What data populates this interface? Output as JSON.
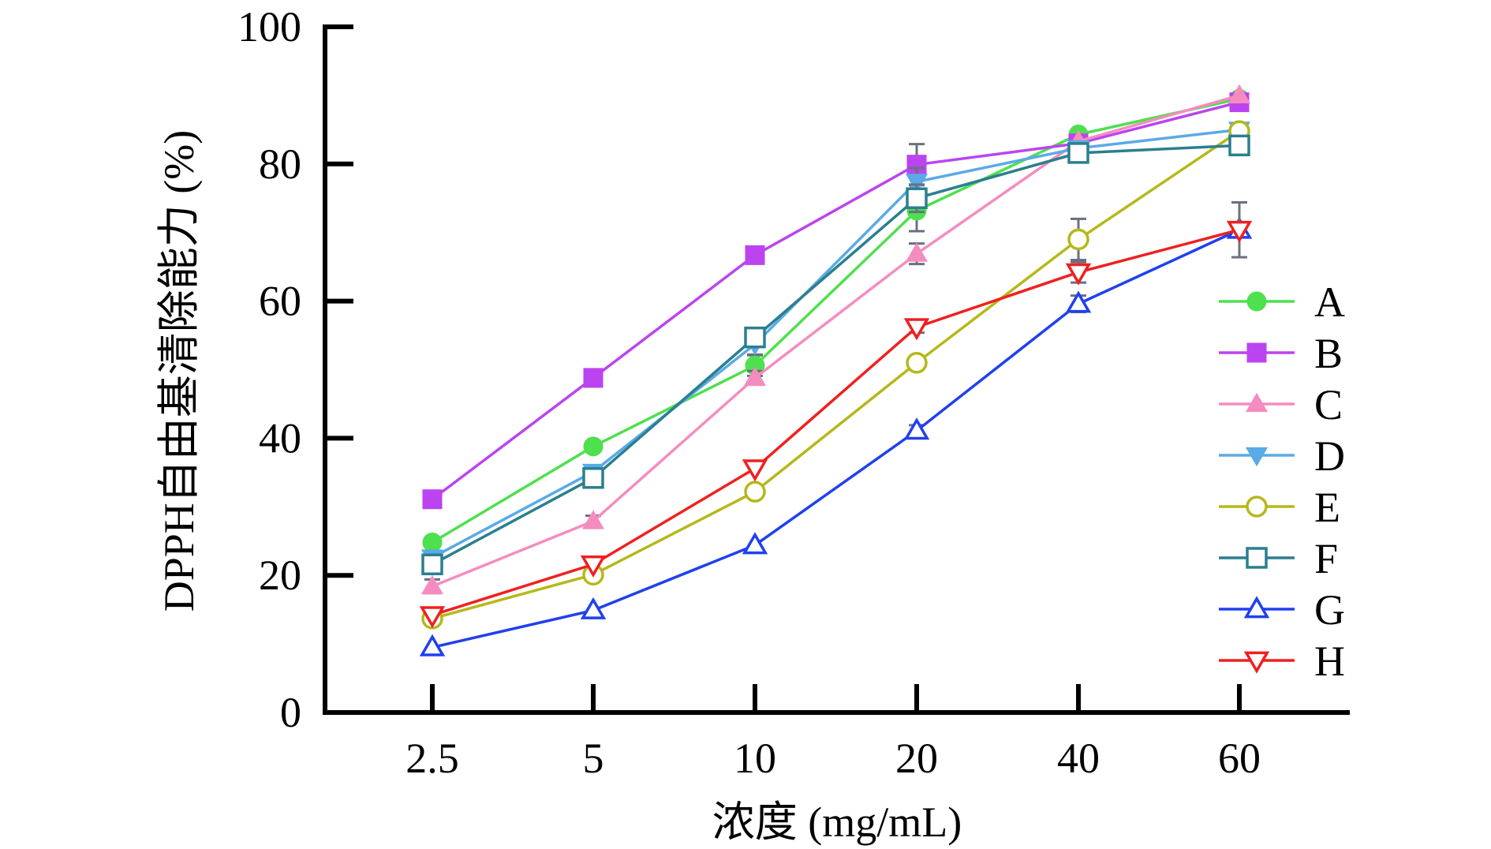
{
  "chart_data": {
    "type": "line",
    "title": "",
    "xlabel": "浓度 (mg/mL)",
    "ylabel": "DPPH自由基清除能力 (%)",
    "categories": [
      "2.5",
      "5",
      "10",
      "20",
      "40",
      "60"
    ],
    "ylim": [
      0,
      100
    ],
    "yticks": [
      "0",
      "20",
      "40",
      "60",
      "80",
      "100"
    ],
    "grid": false,
    "legend_position": "right",
    "series": [
      {
        "name": "A",
        "color": "#4ee04e",
        "marker": "circle",
        "filled": true,
        "values": [
          24.8,
          38.8,
          50.6,
          73.2,
          84.3,
          89.5
        ],
        "errors": [
          0.5,
          0.6,
          1.5,
          3.0,
          0.5,
          0.5
        ]
      },
      {
        "name": "B",
        "color": "#bb44f0",
        "marker": "square",
        "filled": true,
        "values": [
          31.1,
          48.8,
          66.7,
          79.9,
          83.0,
          89.0
        ],
        "errors": [
          0.5,
          0.5,
          0.5,
          3.0,
          0.5,
          0.5
        ]
      },
      {
        "name": "C",
        "color": "#f58cc0",
        "marker": "triangle-up",
        "filled": true,
        "values": [
          18.4,
          27.9,
          48.8,
          66.9,
          83.3,
          90.0
        ],
        "errors": [
          1.0,
          0.8,
          1.0,
          1.5,
          0.5,
          0.5
        ]
      },
      {
        "name": "D",
        "color": "#5aaae8",
        "marker": "triangle-down",
        "filled": true,
        "values": [
          22.6,
          35.1,
          53.7,
          77.4,
          82.3,
          85.0
        ],
        "errors": [
          0.6,
          0.6,
          1.5,
          2.0,
          0.5,
          0.5
        ]
      },
      {
        "name": "E",
        "color": "#b5b81a",
        "marker": "circle",
        "filled": false,
        "values": [
          13.7,
          20.1,
          32.2,
          51.0,
          69.0,
          84.8
        ],
        "errors": [
          0.5,
          0.5,
          0.5,
          0.5,
          3.0,
          0.5
        ]
      },
      {
        "name": "F",
        "color": "#2a7f8f",
        "marker": "square",
        "filled": false,
        "values": [
          21.6,
          34.2,
          54.7,
          75.0,
          81.6,
          82.7
        ],
        "errors": [
          0.5,
          0.6,
          1.0,
          2.0,
          1.0,
          0.5
        ]
      },
      {
        "name": "G",
        "color": "#2040f0",
        "marker": "triangle-up",
        "filled": false,
        "values": [
          9.5,
          14.9,
          24.4,
          41.1,
          59.6,
          70.4
        ],
        "errors": [
          0.5,
          0.5,
          0.5,
          0.8,
          1.2,
          1.0
        ]
      },
      {
        "name": "H",
        "color": "#f02020",
        "marker": "triangle-down",
        "filled": false,
        "values": [
          14.2,
          21.6,
          35.6,
          56.2,
          64.2,
          70.4
        ],
        "errors": [
          0.5,
          0.5,
          0.6,
          0.8,
          1.5,
          4.0
        ]
      }
    ]
  }
}
